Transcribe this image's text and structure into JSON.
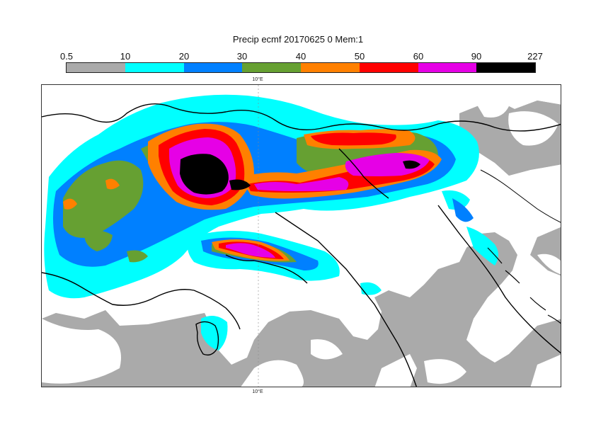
{
  "title": "Precip ecmf 20170625 0 Mem:1",
  "legend": {
    "tick_labels": [
      "0.5",
      "10",
      "20",
      "30",
      "40",
      "50",
      "60",
      "90",
      "227"
    ],
    "colors": [
      "#aaaaaa",
      "#00ffff",
      "#0080ff",
      "#66a032",
      "#ff8000",
      "#ff0000",
      "#e600e6",
      "#000000"
    ]
  },
  "map": {
    "longitude_label_top": "10°E",
    "longitude_label_bottom": "10°E",
    "fields": [
      {
        "name": "precip-0.5",
        "color": "#aaaaaa"
      },
      {
        "name": "precip-10",
        "color": "#00ffff"
      },
      {
        "name": "precip-20",
        "color": "#0080ff"
      },
      {
        "name": "precip-30",
        "color": "#66a032"
      },
      {
        "name": "precip-40",
        "color": "#ff8000"
      },
      {
        "name": "precip-50",
        "color": "#ff0000"
      },
      {
        "name": "precip-60",
        "color": "#e600e6"
      },
      {
        "name": "precip-90",
        "color": "#000000"
      }
    ]
  }
}
